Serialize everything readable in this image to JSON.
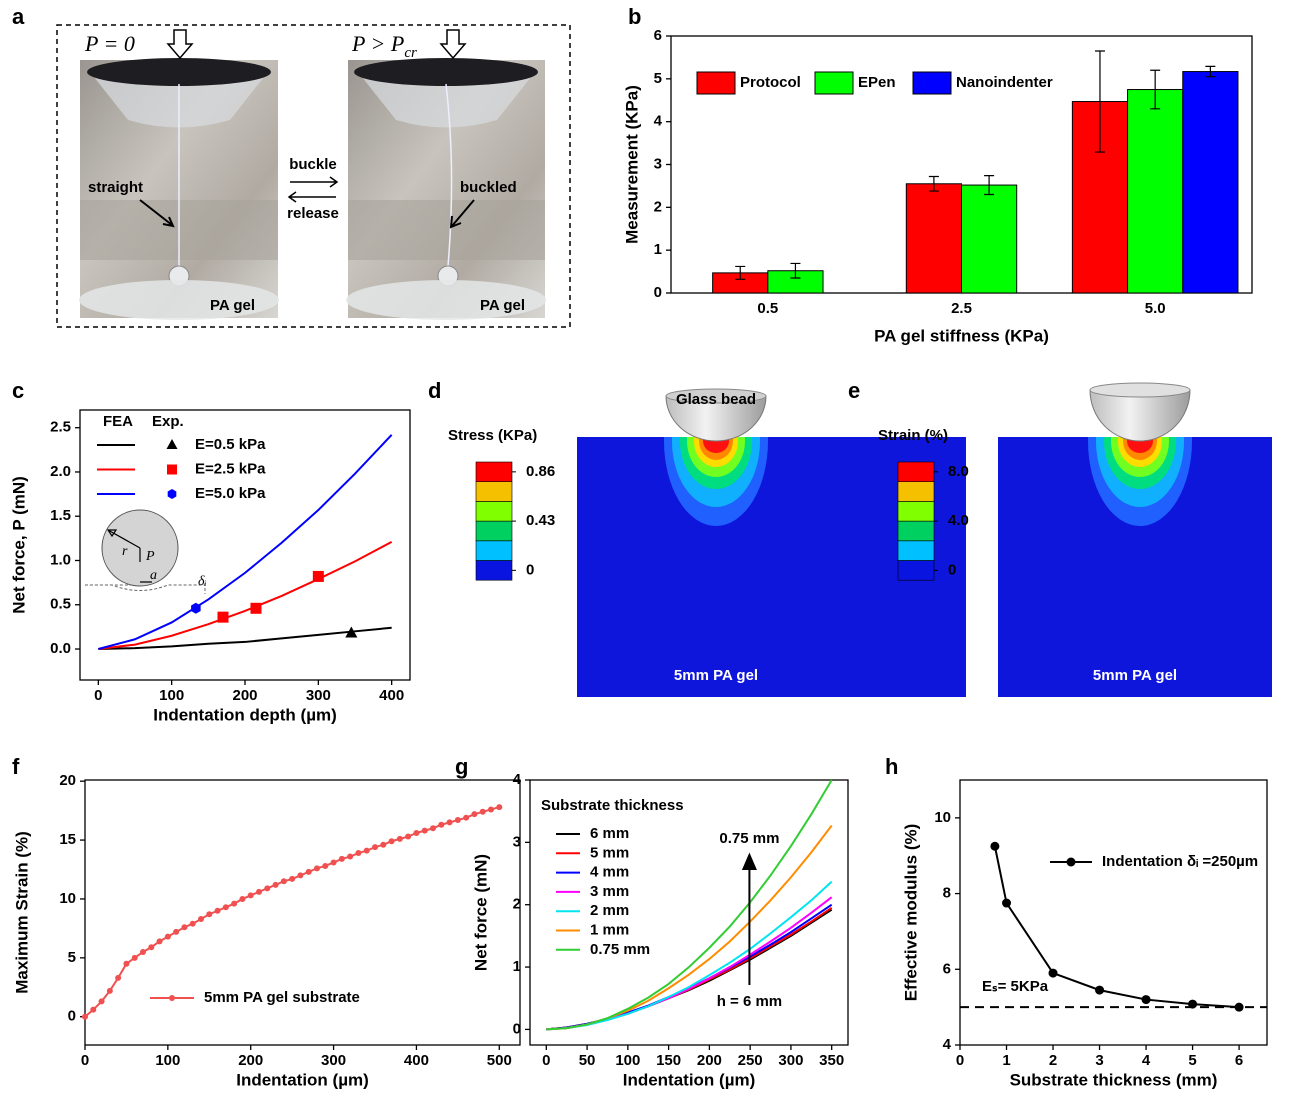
{
  "photo": {
    "label": "a",
    "left_load": "P = 0",
    "right_load": {
      "main": "P > P",
      "sub": "cr"
    },
    "forward": "buckle",
    "backward": "release",
    "left_state": "straight",
    "right_state": "buckled",
    "left_sample": "PA gel",
    "right_sample": "PA gel"
  },
  "simulations": [
    {
      "label": "d",
      "colorbar_title": "Stress (KPa)",
      "colorbar_ticks": [
        0,
        0.43,
        0.86
      ],
      "bead_label": "Glass bead",
      "sample_label": "5mm PA gel"
    },
    {
      "label": "e",
      "colorbar_title": "Strain (%)",
      "colorbar_ticks": [
        0,
        {
          "value": 4,
          "label": "4.0"
        },
        {
          "value": 8,
          "label": "8.0"
        }
      ],
      "sample_label": "5mm PA gel"
    }
  ],
  "chart_data": [
    {
      "type": "bar",
      "label": "b",
      "xlabel": "PA gel stiffness (KPa)",
      "ylabel": "Measurement (KPa)",
      "categories": [
        "0.5",
        "2.5",
        "5.0"
      ],
      "ylim": [
        0,
        6
      ],
      "yticks": [
        0,
        1,
        2,
        3,
        4,
        5,
        6
      ],
      "legend": "upper left",
      "series": [
        {
          "name": "Protocol",
          "color": "#ff0000",
          "values": [
            0.47,
            2.55,
            4.47
          ],
          "errors": [
            0.15,
            0.17,
            1.18
          ]
        },
        {
          "name": "EPen",
          "color": "#00ff00",
          "values": [
            0.52,
            2.52,
            4.75
          ],
          "errors": [
            0.17,
            0.22,
            0.45
          ]
        },
        {
          "name": "Nanoindenter",
          "color": "#0000ff",
          "values": [
            null,
            null,
            5.17
          ],
          "errors": [
            null,
            null,
            0.12
          ]
        }
      ]
    },
    {
      "type": "line",
      "label": "c",
      "xlabel": "Indentation depth (µm)",
      "ylabel": "Net force, P (mN)",
      "xlim": [
        -25,
        425
      ],
      "ylim": [
        -0.35,
        2.7
      ],
      "xticks": [
        0,
        100,
        200,
        300,
        400
      ],
      "yticks": [
        {
          "value": 0,
          "label": "0.0"
        },
        {
          "value": 0.5,
          "label": "0.5"
        },
        {
          "value": 1,
          "label": "1.0"
        },
        {
          "value": 1.5,
          "label": "1.5"
        },
        {
          "value": 2,
          "label": "2.0"
        },
        {
          "value": 2.5,
          "label": "2.5"
        }
      ],
      "legend_headers": [
        "FEA",
        "Exp."
      ],
      "inset_labels": [
        "r",
        "P",
        "a",
        "δᵢ"
      ],
      "x": [
        0,
        50,
        100,
        150,
        200,
        250,
        300,
        350,
        400
      ],
      "series": [
        {
          "name": "E=0.5 kPa",
          "color": "#000000",
          "values": [
            0,
            0.01,
            0.03,
            0.06,
            0.08,
            0.12,
            0.16,
            0.2,
            0.24
          ]
        },
        {
          "name": "E=2.5 kPa",
          "color": "#ff0000",
          "values": [
            0,
            0.05,
            0.15,
            0.28,
            0.43,
            0.6,
            0.79,
            0.99,
            1.21
          ]
        },
        {
          "name": "E=5.0 kPa",
          "color": "#0000ff",
          "values": [
            0,
            0.11,
            0.3,
            0.56,
            0.86,
            1.2,
            1.57,
            1.98,
            2.42
          ]
        }
      ],
      "experiments": [
        {
          "marker": "triangle",
          "color": "#000000",
          "x": [
            345
          ],
          "values": [
            0.18
          ]
        },
        {
          "marker": "square",
          "color": "#ff0000",
          "x": [
            170,
            215,
            300
          ],
          "values": [
            0.36,
            0.46,
            0.82
          ]
        },
        {
          "marker": "hexagon",
          "color": "#0000ff",
          "x": [
            133
          ],
          "values": [
            0.46
          ]
        }
      ]
    },
    {
      "type": "line",
      "label": "f",
      "xlabel": "Indentation (µm)",
      "ylabel": "Maximum Strain (%)",
      "xlim": [
        0,
        525
      ],
      "ylim": [
        -2.4,
        20.1
      ],
      "xticks": [
        0,
        100,
        200,
        300,
        400,
        500
      ],
      "yticks": [
        0,
        5,
        10,
        15,
        20
      ],
      "x": [
        0,
        10,
        20,
        30,
        40,
        50,
        60,
        70,
        80,
        90,
        100,
        110,
        120,
        130,
        140,
        150,
        160,
        170,
        180,
        190,
        200,
        210,
        220,
        230,
        240,
        250,
        260,
        270,
        280,
        290,
        300,
        310,
        320,
        330,
        340,
        350,
        360,
        370,
        380,
        390,
        400,
        410,
        420,
        430,
        440,
        450,
        460,
        470,
        480,
        490,
        500
      ],
      "series": [
        {
          "name": "5mm PA gel substrate",
          "color": "#f05050",
          "marker": "circle",
          "values": [
            0,
            0.6,
            1.3,
            2.2,
            3.3,
            4.5,
            5.0,
            5.5,
            5.9,
            6.4,
            6.8,
            7.2,
            7.6,
            7.9,
            8.3,
            8.7,
            9.0,
            9.3,
            9.6,
            10.0,
            10.3,
            10.6,
            10.9,
            11.2,
            11.5,
            11.7,
            12.0,
            12.3,
            12.6,
            12.8,
            13.1,
            13.4,
            13.6,
            13.9,
            14.1,
            14.4,
            14.6,
            14.9,
            15.1,
            15.3,
            15.6,
            15.8,
            16.0,
            16.3,
            16.5,
            16.7,
            16.9,
            17.2,
            17.4,
            17.6,
            17.8
          ]
        }
      ]
    },
    {
      "type": "line",
      "label": "g",
      "xlabel": "Indentation (µm)",
      "ylabel": "Net force (mN)",
      "xlim": [
        -20,
        370
      ],
      "ylim": [
        -0.25,
        4
      ],
      "xticks": [
        0,
        50,
        100,
        150,
        200,
        250,
        300,
        350
      ],
      "yticks": [
        0,
        1,
        2,
        3,
        4
      ],
      "legend_title": "Substrate thickness",
      "annotation_top": "0.75 mm",
      "annotation_bottom": "h = 6 mm",
      "x": [
        0,
        25,
        50,
        75,
        100,
        125,
        150,
        175,
        200,
        225,
        250,
        275,
        300,
        325,
        350
      ],
      "series": [
        {
          "name": "6 mm",
          "color": "#000000",
          "values": [
            0,
            0.03,
            0.09,
            0.16,
            0.26,
            0.37,
            0.5,
            0.63,
            0.78,
            0.95,
            1.12,
            1.31,
            1.5,
            1.71,
            1.92
          ]
        },
        {
          "name": "5 mm",
          "color": "#ff0000",
          "values": [
            0,
            0.03,
            0.09,
            0.17,
            0.26,
            0.38,
            0.5,
            0.64,
            0.8,
            0.96,
            1.14,
            1.33,
            1.52,
            1.73,
            1.95
          ]
        },
        {
          "name": "4 mm",
          "color": "#0000ff",
          "values": [
            0,
            0.03,
            0.09,
            0.17,
            0.27,
            0.38,
            0.52,
            0.66,
            0.82,
            0.99,
            1.17,
            1.36,
            1.56,
            1.78,
            2.0
          ]
        },
        {
          "name": "3 mm",
          "color": "#ff00ff",
          "values": [
            0,
            0.02,
            0.08,
            0.16,
            0.25,
            0.37,
            0.5,
            0.65,
            0.82,
            1.0,
            1.2,
            1.41,
            1.63,
            1.87,
            2.12
          ]
        },
        {
          "name": "2 mm",
          "color": "#00e5ee",
          "values": [
            0,
            0.02,
            0.07,
            0.15,
            0.25,
            0.37,
            0.52,
            0.68,
            0.87,
            1.07,
            1.29,
            1.54,
            1.8,
            2.07,
            2.37
          ]
        },
        {
          "name": "1 mm",
          "color": "#ff8c00",
          "values": [
            0,
            0.02,
            0.08,
            0.18,
            0.3,
            0.46,
            0.66,
            0.88,
            1.13,
            1.41,
            1.73,
            2.07,
            2.44,
            2.84,
            3.27
          ]
        },
        {
          "name": "0.75 mm",
          "color": "#33cc33",
          "values": [
            0,
            0.02,
            0.08,
            0.18,
            0.33,
            0.51,
            0.73,
            1.0,
            1.31,
            1.65,
            2.04,
            2.47,
            2.94,
            3.45,
            4.0
          ]
        }
      ]
    },
    {
      "type": "line",
      "label": "h",
      "xlabel": "Substrate thickness (mm)",
      "ylabel": "Effective modulus (%)",
      "xlim": [
        0,
        6.6
      ],
      "ylim": [
        4,
        11
      ],
      "xticks": [
        0,
        1,
        2,
        3,
        4,
        5,
        6
      ],
      "yticks": [
        4,
        6,
        8,
        10
      ],
      "reference": {
        "value": 5,
        "label": "Eₛ= 5KPa"
      },
      "x": [
        0.75,
        1,
        2,
        3,
        4,
        5,
        6
      ],
      "series": [
        {
          "name": "Indentation δᵢ =250µm",
          "color": "#000000",
          "marker": "circle",
          "values": [
            9.25,
            7.75,
            5.9,
            5.45,
            5.2,
            5.08,
            5.0
          ]
        }
      ]
    }
  ]
}
